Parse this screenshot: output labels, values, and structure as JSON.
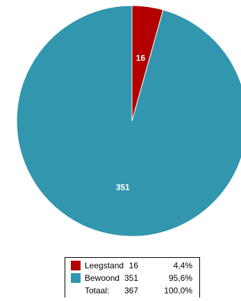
{
  "chart_data": {
    "type": "pie",
    "categories": [
      "Leegstand",
      "Bewoond"
    ],
    "values": [
      16,
      351
    ],
    "colors": [
      "#B30000",
      "#3296AE"
    ],
    "data_labels": [
      "16",
      "351"
    ]
  },
  "legend": {
    "rows": [
      {
        "label": "Leegstand",
        "count": "16",
        "percent": "4,4%",
        "color": "#B30000"
      },
      {
        "label": "Bewoond",
        "count": "351",
        "percent": "95,6%",
        "color": "#3296AE"
      },
      {
        "label": "Totaal:",
        "count": "367",
        "percent": "100,0%"
      }
    ]
  }
}
